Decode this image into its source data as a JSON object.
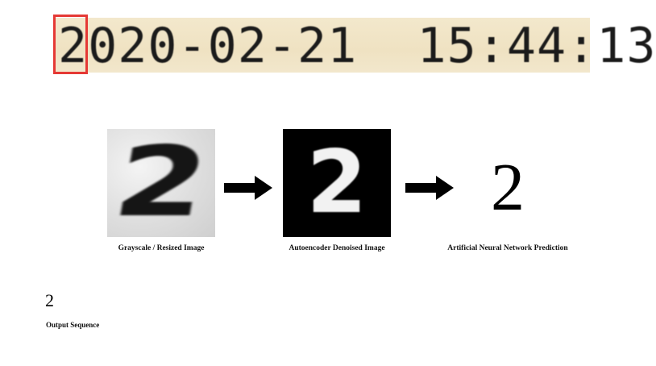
{
  "timestamp": {
    "text": "2020-02-21  15:44:13"
  },
  "pipeline": {
    "grayscale": {
      "digit": "2",
      "caption": "Grayscale / Resized Image"
    },
    "denoised": {
      "digit": "2",
      "caption": "Autoencoder Denoised Image"
    },
    "prediction": {
      "digit": "2",
      "caption": "Artificial Neural Network Prediction"
    }
  },
  "output": {
    "sequence": "2",
    "label": "Output Sequence"
  },
  "colors": {
    "highlight": "#e53935",
    "timestamp_bg": "#f0e4c6"
  },
  "icons": [
    "arrow-right-icon",
    "arrow-right-icon"
  ]
}
